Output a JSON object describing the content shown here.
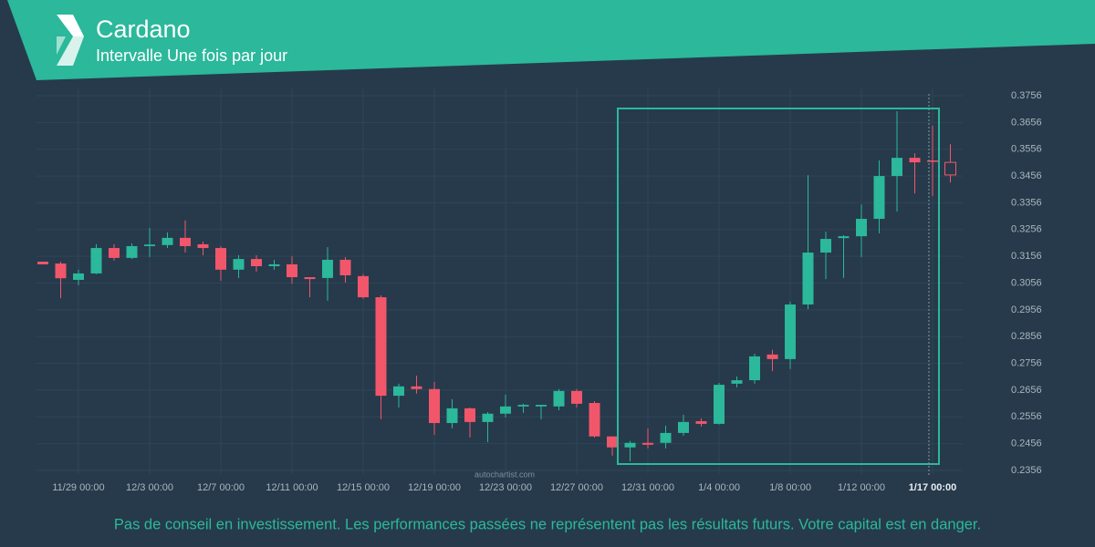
{
  "header": {
    "title": "Cardano",
    "subtitle": "Intervalle Une fois par jour"
  },
  "footer": {
    "disclaimer": "Pas de conseil en investissement. Les performances passées ne représentent pas les résultats futurs. Votre capital est en danger.",
    "watermark": "autochartist.com"
  },
  "chart_data": {
    "type": "candlestick",
    "categories": [
      null,
      null,
      "11/29 00:00",
      null,
      null,
      null,
      "12/3 00:00",
      null,
      null,
      null,
      "12/7 00:00",
      null,
      null,
      null,
      "12/11 00:00",
      null,
      null,
      null,
      "12/15 00:00",
      null,
      null,
      null,
      "12/19 00:00",
      null,
      null,
      null,
      "12/23 00:00",
      null,
      null,
      null,
      "12/27 00:00",
      null,
      null,
      null,
      "12/31 00:00",
      null,
      null,
      null,
      "1/4 00:00",
      null,
      null,
      null,
      "1/8 00:00",
      null,
      null,
      null,
      "1/12 00:00",
      null,
      null,
      null,
      "1/17 00:00",
      null
    ],
    "open": [
      0.3136,
      0.3129,
      0.3068,
      0.3092,
      0.3187,
      0.315,
      0.3194,
      0.3198,
      0.3225,
      0.3201,
      0.3187,
      0.3106,
      0.3146,
      0.3119,
      0.3126,
      0.3078,
      0.3075,
      0.3143,
      0.3082,
      0.3003,
      0.2635,
      0.267,
      0.266,
      0.2533,
      0.2588,
      0.2537,
      0.2568,
      0.2595,
      0.2595,
      0.2595,
      0.2653,
      0.2608,
      0.2483,
      0.2442,
      0.2459,
      0.2459,
      0.2496,
      0.254,
      0.253,
      0.268,
      0.2693,
      0.2789,
      0.2772,
      0.2976,
      0.317,
      0.3224,
      0.3231,
      0.3296,
      0.3456,
      0.3524,
      0.3514,
      0.3507
    ],
    "high": [
      0.3136,
      0.3136,
      0.3106,
      0.3201,
      0.3201,
      0.3204,
      0.3262,
      0.3245,
      0.329,
      0.3211,
      0.3194,
      0.316,
      0.316,
      0.3143,
      0.3156,
      0.3078,
      0.319,
      0.3153,
      0.3089,
      0.301,
      0.268,
      0.271,
      0.2687,
      0.2622,
      0.2591,
      0.2574,
      0.2639,
      0.2605,
      0.2601,
      0.266,
      0.266,
      0.2615,
      0.2483,
      0.2466,
      0.2513,
      0.2523,
      0.2564,
      0.255,
      0.2683,
      0.2707,
      0.2792,
      0.2806,
      0.2986,
      0.3459,
      0.3248,
      0.3235,
      0.335,
      0.3514,
      0.3698,
      0.3541,
      0.3644,
      0.3575
    ],
    "low": [
      0.3126,
      0.3,
      0.3048,
      0.3089,
      0.314,
      0.3146,
      0.3153,
      0.3187,
      0.317,
      0.316,
      0.3065,
      0.3075,
      0.3099,
      0.3106,
      0.3054,
      0.3003,
      0.299,
      0.3058,
      0.2997,
      0.2547,
      0.2591,
      0.2643,
      0.2489,
      0.2513,
      0.2479,
      0.2462,
      0.2554,
      0.2571,
      0.2547,
      0.2581,
      0.2591,
      0.2479,
      0.2411,
      0.239,
      0.2438,
      0.2438,
      0.2486,
      0.252,
      0.2527,
      0.2666,
      0.268,
      0.2727,
      0.2735,
      0.2959,
      0.3071,
      0.3075,
      0.3153,
      0.3242,
      0.3323,
      0.3391,
      0.3381,
      0.3432
    ],
    "close": [
      0.3126,
      0.3074,
      0.3092,
      0.3187,
      0.315,
      0.3194,
      0.32,
      0.3225,
      0.3194,
      0.3187,
      0.3106,
      0.3146,
      0.3119,
      0.3126,
      0.3078,
      0.3071,
      0.3143,
      0.3085,
      0.3003,
      0.2635,
      0.267,
      0.266,
      0.2533,
      0.2588,
      0.2537,
      0.2568,
      0.2595,
      0.2601,
      0.2601,
      0.2653,
      0.2605,
      0.2483,
      0.2442,
      0.2459,
      0.2452,
      0.2496,
      0.2537,
      0.253,
      0.2676,
      0.2693,
      0.2782,
      0.2772,
      0.2976,
      0.317,
      0.3221,
      0.3231,
      0.3296,
      0.3456,
      0.3524,
      0.3507,
      0.3511,
      0.346
    ],
    "up_color": "#2bb89b",
    "down_color": "#f2566b",
    "ylim": [
      0.2356,
      0.3756
    ],
    "yticks": [
      0.2356,
      0.2456,
      0.2556,
      0.2656,
      0.2756,
      0.2856,
      0.2956,
      0.3056,
      0.3156,
      0.3256,
      0.3356,
      0.3456,
      0.3556,
      0.3656,
      0.3756
    ],
    "grid": true
  }
}
